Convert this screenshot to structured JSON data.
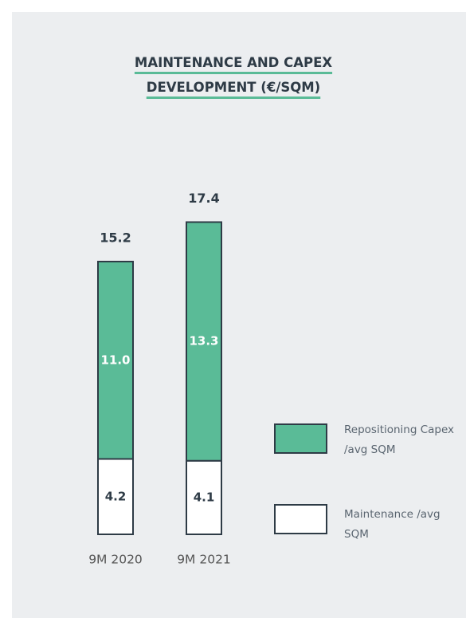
{
  "chart_data": {
    "type": "stacked_bar",
    "title": "MAINTENANCE AND CAPEX DEVELOPMENT (€/SQM)",
    "categories": [
      "9M 2020",
      "9M 2021"
    ],
    "series": [
      {
        "name": "Maintenance /avg  SQM",
        "color": "#ffffff",
        "values": [
          4.2,
          4.1
        ]
      },
      {
        "name": "Repositioning Capex /avg SQM",
        "color": "#5abb97",
        "values": [
          11.0,
          13.3
        ],
        "value_labels": [
          "11.0",
          "13.3"
        ]
      }
    ],
    "totals": [
      15.2,
      17.4
    ]
  }
}
